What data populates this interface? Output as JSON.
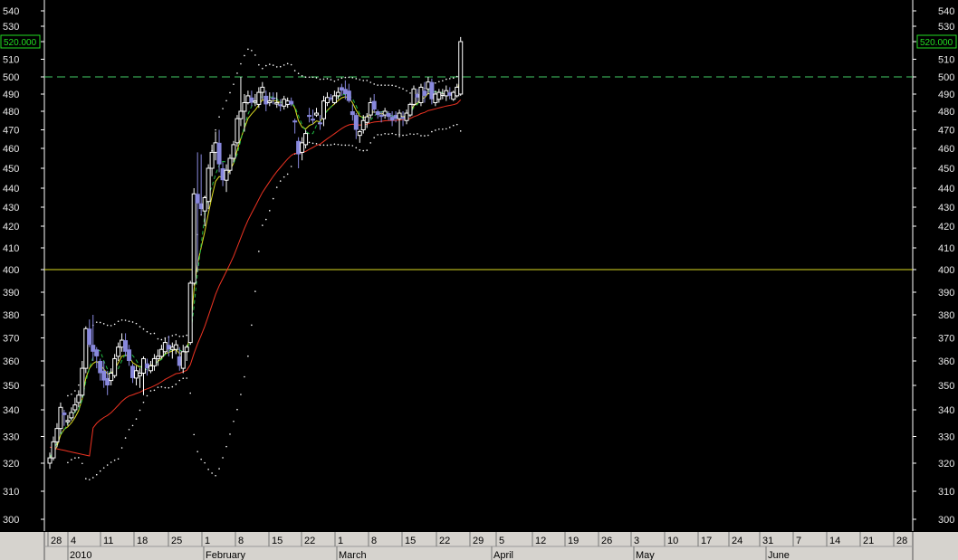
{
  "chart_data": {
    "type": "candlestick",
    "ylim": [
      295,
      545
    ],
    "y_ticks": [
      300,
      310,
      320,
      330,
      340,
      350,
      360,
      370,
      380,
      390,
      400,
      410,
      420,
      430,
      440,
      450,
      460,
      470,
      480,
      490,
      500,
      510,
      520,
      530,
      540
    ],
    "price_badge": "520.000",
    "reference_lines": [
      {
        "value": 500,
        "style": "dashed",
        "color": "#44cc66"
      },
      {
        "value": 400,
        "style": "solid",
        "color": "#dddd22"
      }
    ],
    "x_day_labels": [
      "28",
      "4",
      "11",
      "18",
      "25",
      "1",
      "8",
      "15",
      "22",
      "1",
      "8",
      "15",
      "22",
      "29",
      "5",
      "12",
      "19",
      "26",
      "3",
      "10",
      "17",
      "24",
      "31",
      "7",
      "14",
      "21",
      "28"
    ],
    "x_month_labels": [
      "2010",
      "February",
      "March",
      "April",
      "May",
      "June"
    ],
    "colors": {
      "up": "#ffffff",
      "down": "#8888dd",
      "ma_fast": "#dddd22",
      "ma_slow": "#ee3322",
      "band": "#ffffff",
      "band_dash": "#22bb44"
    },
    "candles": [
      [
        320,
        324,
        318,
        322
      ],
      [
        322,
        330,
        321,
        328
      ],
      [
        328,
        335,
        326,
        333
      ],
      [
        333,
        343,
        331,
        341
      ],
      [
        339,
        340,
        334,
        338
      ],
      [
        336,
        338,
        334,
        336
      ],
      [
        337,
        341,
        336,
        339
      ],
      [
        340,
        345,
        339,
        342
      ],
      [
        343,
        348,
        341,
        346
      ],
      [
        346,
        360,
        345,
        357
      ],
      [
        357,
        375,
        355,
        374
      ],
      [
        374,
        378,
        366,
        367
      ],
      [
        367,
        380,
        360,
        364
      ],
      [
        365,
        366,
        357,
        362
      ],
      [
        360,
        361,
        352,
        355
      ],
      [
        356,
        360,
        349,
        352
      ],
      [
        353,
        356,
        346,
        350
      ],
      [
        352,
        357,
        350,
        355
      ],
      [
        354,
        363,
        353,
        361
      ],
      [
        362,
        368,
        360,
        366
      ],
      [
        366,
        372,
        364,
        369
      ],
      [
        369,
        372,
        362,
        364
      ],
      [
        365,
        367,
        358,
        360
      ],
      [
        358,
        359,
        351,
        353
      ],
      [
        353,
        358,
        350,
        356
      ],
      [
        354,
        357,
        349,
        355
      ],
      [
        355,
        362,
        346,
        361
      ],
      [
        359,
        361,
        354,
        357
      ],
      [
        356,
        360,
        355,
        358
      ],
      [
        358,
        363,
        356,
        361
      ],
      [
        361,
        365,
        358,
        362
      ],
      [
        362,
        367,
        361,
        365
      ],
      [
        364,
        370,
        363,
        368
      ],
      [
        367,
        371,
        362,
        365
      ],
      [
        365,
        368,
        361,
        366
      ],
      [
        365,
        369,
        363,
        367
      ],
      [
        362,
        366,
        356,
        358
      ],
      [
        357,
        367,
        355,
        364
      ],
      [
        364,
        367,
        360,
        366
      ],
      [
        368,
        395,
        367,
        394
      ],
      [
        394,
        440,
        393,
        437
      ],
      [
        437,
        458,
        399,
        432
      ],
      [
        432,
        457,
        426,
        429
      ],
      [
        428,
        436,
        420,
        435
      ],
      [
        433,
        452,
        429,
        450
      ],
      [
        450,
        462,
        446,
        458
      ],
      [
        458,
        469,
        454,
        463
      ],
      [
        463,
        470,
        448,
        452
      ],
      [
        450,
        453,
        441,
        444
      ],
      [
        444,
        452,
        438,
        449
      ],
      [
        449,
        457,
        447,
        455
      ],
      [
        455,
        464,
        453,
        462
      ],
      [
        463,
        478,
        461,
        476
      ],
      [
        476,
        500,
        472,
        480
      ],
      [
        480,
        490,
        469,
        485
      ],
      [
        485,
        492,
        484,
        489
      ],
      [
        488,
        492,
        483,
        485
      ],
      [
        486,
        490,
        483,
        486
      ],
      [
        484,
        494,
        482,
        491
      ],
      [
        491,
        497,
        487,
        494
      ],
      [
        489,
        492,
        480,
        484
      ],
      [
        485,
        491,
        483,
        486
      ],
      [
        488,
        491,
        484,
        487
      ],
      [
        485,
        491,
        482,
        485
      ],
      [
        484,
        487,
        480,
        483
      ],
      [
        483,
        489,
        481,
        487
      ],
      [
        484,
        488,
        482,
        486
      ],
      [
        486,
        488,
        483,
        484
      ],
      [
        475,
        476,
        468,
        474
      ],
      [
        464,
        466,
        450,
        457
      ],
      [
        458,
        466,
        454,
        463
      ],
      [
        462,
        470,
        460,
        468
      ],
      [
        478,
        482,
        474,
        477
      ],
      [
        476,
        481,
        473,
        475
      ],
      [
        478,
        482,
        477,
        479
      ],
      [
        474,
        478,
        470,
        473
      ],
      [
        476,
        489,
        472,
        486
      ],
      [
        485,
        491,
        483,
        488
      ],
      [
        488,
        490,
        486,
        487
      ],
      [
        485,
        492,
        484,
        489
      ],
      [
        489,
        494,
        487,
        491
      ],
      [
        494,
        496,
        489,
        492
      ],
      [
        493,
        498,
        487,
        490
      ],
      [
        492,
        496,
        485,
        486
      ],
      [
        480,
        484,
        475,
        478
      ],
      [
        478,
        479,
        465,
        470
      ],
      [
        467,
        470,
        463,
        469
      ],
      [
        470,
        478,
        468,
        475
      ],
      [
        474,
        479,
        471,
        477
      ],
      [
        478,
        488,
        476,
        485
      ],
      [
        486,
        490,
        479,
        481
      ],
      [
        480,
        481,
        476,
        478
      ],
      [
        478,
        480,
        474,
        477
      ],
      [
        478,
        482,
        476,
        480
      ],
      [
        479,
        480,
        475,
        477
      ],
      [
        477,
        480,
        472,
        475
      ],
      [
        478,
        480,
        474,
        476
      ],
      [
        476,
        481,
        466,
        479
      ],
      [
        477,
        480,
        472,
        476
      ],
      [
        475,
        481,
        473,
        479
      ],
      [
        478,
        485,
        477,
        484
      ],
      [
        484,
        495,
        483,
        493
      ],
      [
        490,
        493,
        485,
        488
      ],
      [
        485,
        496,
        483,
        494
      ],
      [
        492,
        497,
        485,
        489
      ],
      [
        493,
        500,
        490,
        497
      ],
      [
        497,
        499,
        484,
        487
      ],
      [
        485,
        492,
        483,
        490
      ],
      [
        487,
        493,
        485,
        491
      ],
      [
        490,
        493,
        487,
        490
      ],
      [
        489,
        495,
        486,
        492
      ],
      [
        491,
        494,
        487,
        489
      ],
      [
        487,
        492,
        486,
        491
      ],
      [
        489,
        496,
        488,
        494
      ],
      [
        490,
        523,
        489,
        520
      ]
    ]
  }
}
